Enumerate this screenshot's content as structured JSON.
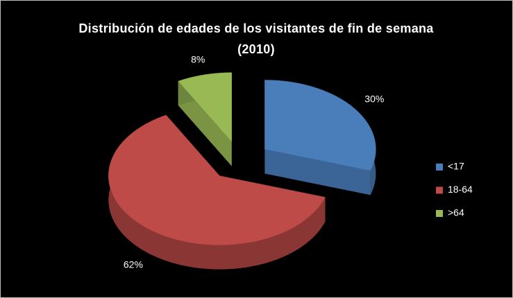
{
  "chart_data": {
    "type": "pie",
    "title": "Distribución de edades de los visitantes de fin de semana (2010)",
    "categories": [
      "<17",
      "18-64",
      ">64"
    ],
    "values": [
      30,
      62,
      8
    ],
    "value_labels": [
      "30%",
      "62%",
      "8%"
    ],
    "colors": [
      "#4a7ebb",
      "#be4b48",
      "#98b954"
    ],
    "legend": "right",
    "exploded": true,
    "three_d": true
  }
}
